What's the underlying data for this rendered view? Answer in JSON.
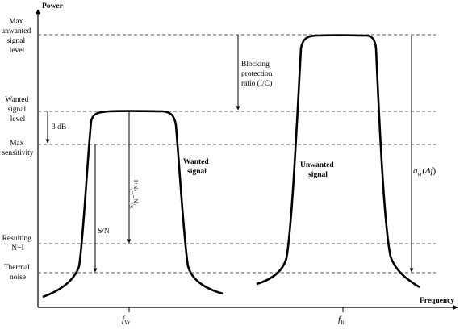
{
  "axes": {
    "y_title": "Power",
    "x_title": "Frequency"
  },
  "levels": {
    "max_unwanted": [
      "Max",
      "unwanted",
      "signal",
      "level"
    ],
    "wanted": [
      "Wanted",
      "signal",
      "level"
    ],
    "max_sensitivity": [
      "Max",
      "sensitivity"
    ],
    "resulting": [
      "Resulting",
      "N+I"
    ],
    "thermal": [
      "Thermal",
      "noise"
    ]
  },
  "annotations": {
    "three_db": "3 dB",
    "blocking": [
      "Blocking",
      "protection",
      "ratio (I/C)"
    ],
    "sn": "S/N",
    "sn_ratio": {
      "s": "S",
      "n": "N",
      "eq": "=",
      "c": "C",
      "ni": "N+I"
    },
    "wanted_signal": [
      "Wanted",
      "signal"
    ],
    "unwanted_signal": [
      "Unwanted",
      "signal"
    ],
    "a_vr": {
      "a": "a",
      "sub": "vr",
      "open": "(",
      "delta": "Δ",
      "f": "f",
      "close": ")"
    }
  },
  "freq_labels": {
    "f_vr": {
      "f": "f",
      "sub": "Vr"
    },
    "f_it": {
      "f": "f",
      "sub": "It"
    }
  },
  "colors": {
    "line": "#000000",
    "dashed": "#555555"
  }
}
